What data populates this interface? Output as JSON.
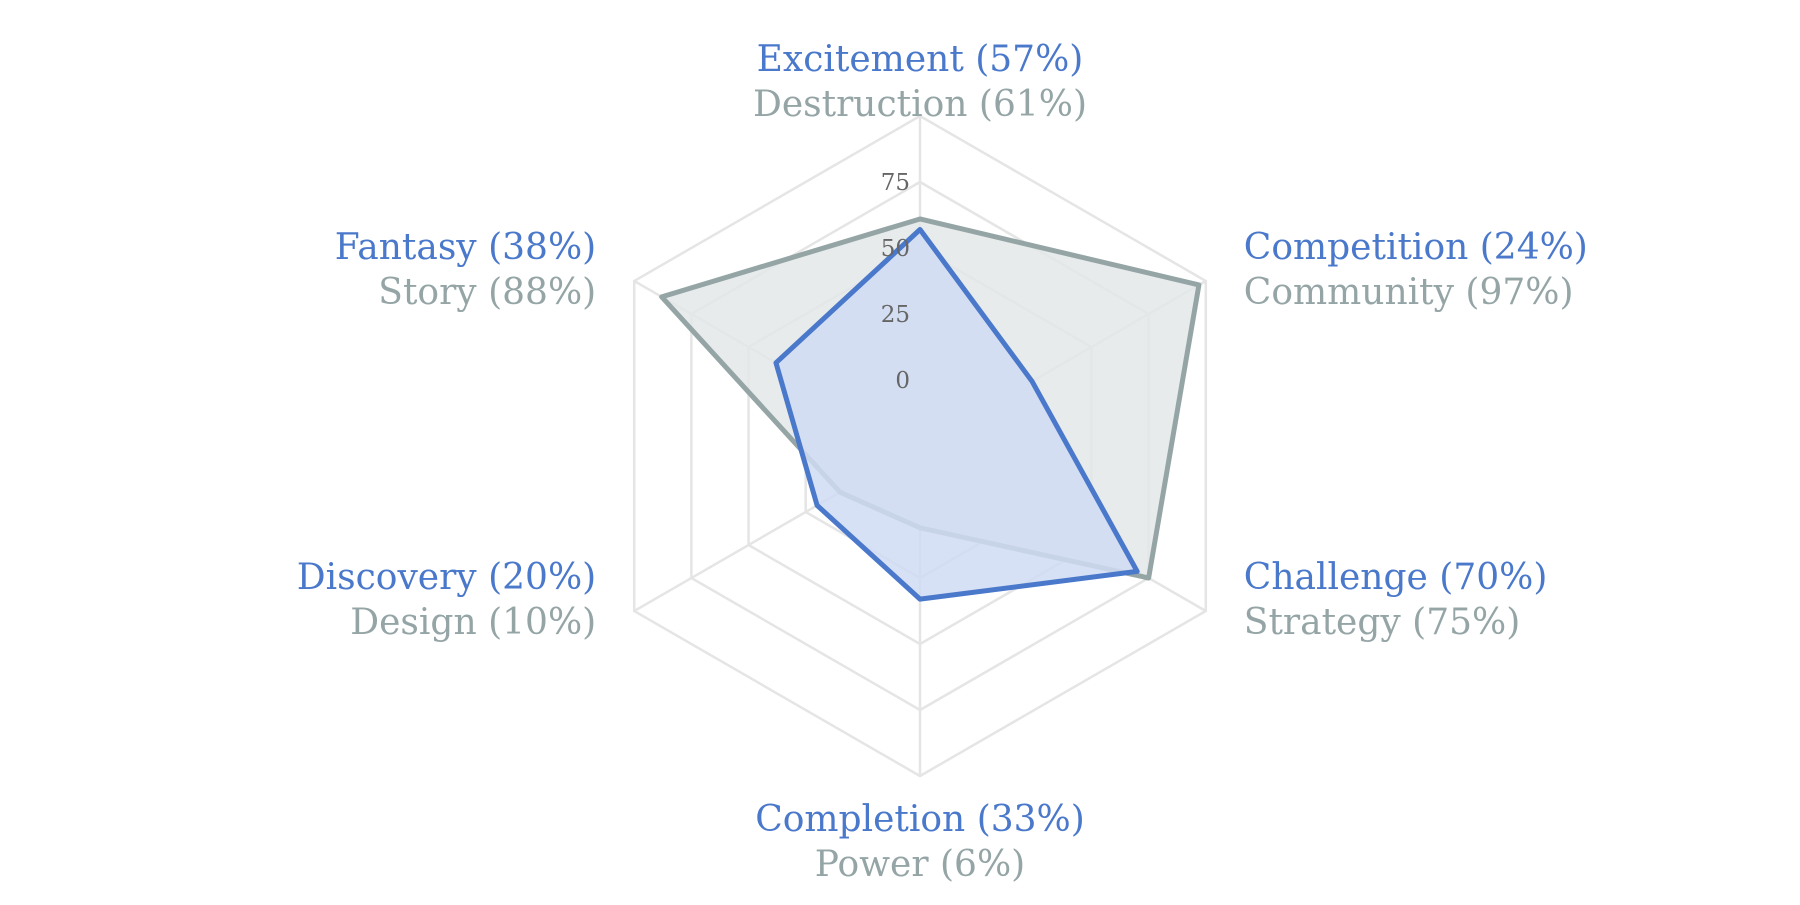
{
  "chart_data": {
    "type": "radar",
    "max": 100,
    "ticks": [
      0,
      25,
      50,
      75
    ],
    "center_offset": 25,
    "colors": {
      "primary": "#4a78cb",
      "primary_fill": "#d0dcf3",
      "secondary": "#95a5a6",
      "secondary_fill": "#e3e7e8",
      "grid": "#e5e5e5",
      "tick": "#666666"
    },
    "axes": [
      {
        "primary_label": "Excitement (57%)",
        "secondary_label": "Destruction (61%)"
      },
      {
        "primary_label": "Competition (24%)",
        "secondary_label": "Community (97%)"
      },
      {
        "primary_label": "Challenge (70%)",
        "secondary_label": "Strategy (75%)"
      },
      {
        "primary_label": "Completion (33%)",
        "secondary_label": "Power (6%)"
      },
      {
        "primary_label": "Discovery (20%)",
        "secondary_label": "Design (10%)"
      },
      {
        "primary_label": "Fantasy (38%)",
        "secondary_label": "Story (88%)"
      }
    ],
    "series": [
      {
        "key": "secondary",
        "values": [
          61,
          97,
          75,
          6,
          10,
          88
        ]
      },
      {
        "key": "primary",
        "values": [
          57,
          24,
          70,
          33,
          20,
          38
        ]
      }
    ]
  }
}
